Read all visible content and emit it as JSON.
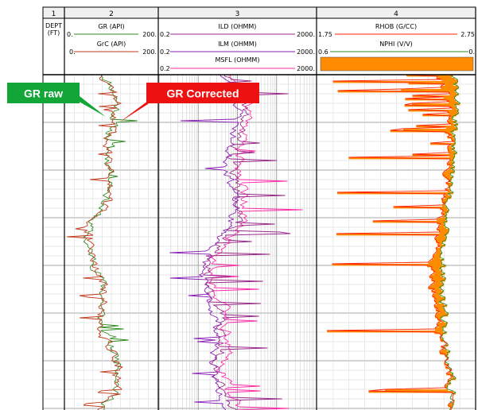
{
  "chart_data": {
    "type": "line",
    "tracks": [
      {
        "number": "1",
        "curves": [],
        "depth_label": [
          "DEPT",
          "(FT)"
        ]
      },
      {
        "number": "2",
        "curves": [
          {
            "name": "GR (API)",
            "min": "0.",
            "max": "200.",
            "color": "#2e8b1e",
            "scale": "linear"
          },
          {
            "name": "GrC (API)",
            "min": "0.",
            "max": "200.",
            "color": "#c0391b",
            "scale": "linear"
          }
        ]
      },
      {
        "number": "3",
        "curves": [
          {
            "name": "ILD (OHMM)",
            "min": "0.2",
            "max": "2000.",
            "color": "#9a2a8a",
            "scale": "log"
          },
          {
            "name": "ILM (OHMM)",
            "min": "0.2",
            "max": "2000.",
            "color": "#8a1fb5",
            "scale": "log"
          },
          {
            "name": "MSFL (OHMM)",
            "min": "0.2",
            "max": "2000.",
            "color": "#ff2aa8",
            "scale": "log"
          }
        ]
      },
      {
        "number": "4",
        "curves": [
          {
            "name": "RHOB (G/CC)",
            "min": "1.75",
            "max": "2.75",
            "color": "#ff2200",
            "scale": "linear"
          },
          {
            "name": "NPHI (V/V)",
            "min": "0.6",
            "max": "0.",
            "color": "#2e8b1e",
            "scale": "linear"
          }
        ],
        "fill_color": "#ff8c00"
      }
    ]
  },
  "annotations": [
    {
      "text": "GR raw",
      "color": "#12a537",
      "text_color": "#ffffff"
    },
    {
      "text": "GR Corrected",
      "color": "#ee1111",
      "text_color": "#ffffff"
    }
  ]
}
